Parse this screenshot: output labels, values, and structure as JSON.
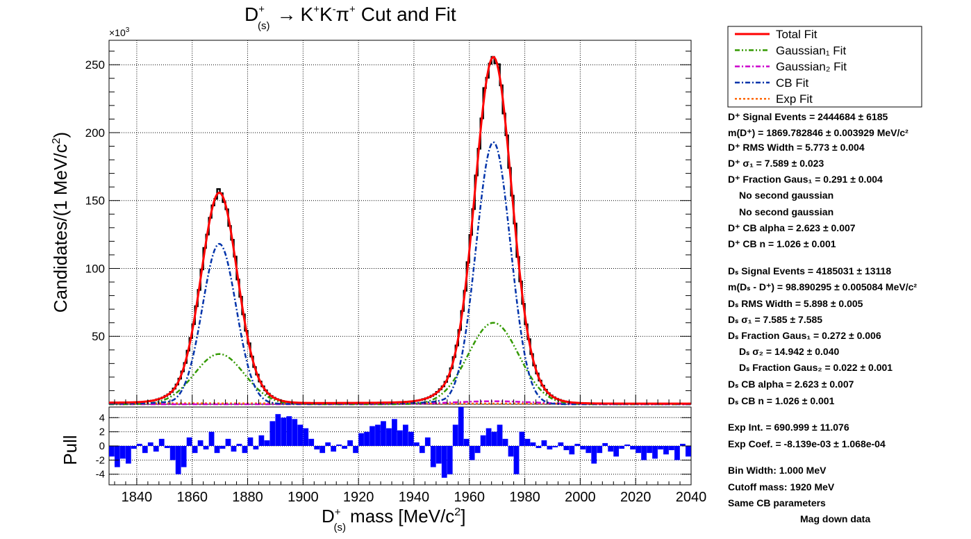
{
  "chart_data": {
    "type": "line",
    "title": "D⁺(s) → K⁺K⁻π⁺ Cut and Fit",
    "title_parts": {
      "a": "D",
      "a_sup": "+",
      "a_sub": "(s)",
      "arrow": "→",
      "b": "K",
      "b_sup": "+",
      "c": "K",
      "c_sup": "-",
      "d": "π",
      "d_sup": "+",
      "rest": "Cut and Fit"
    },
    "xlabel": "D⁺(s) mass [MeV/c²]",
    "xlabel_parts": {
      "a": "D",
      "sup": "+",
      "sub": "(s)",
      "rest": "mass [MeV/c",
      "exp": "2",
      "close": "]"
    },
    "ylabel": "Candidates/(1 MeV/c²)",
    "ylabel_parts": {
      "main": "Candidates/(1 MeV/c",
      "exp": "2",
      "close": ")"
    },
    "y_multiplier": "×10³",
    "y_multiplier_parts": {
      "base": "×10",
      "exp": "3"
    },
    "xlim": [
      1830,
      2040
    ],
    "ylim": [
      0,
      268
    ],
    "xticks": [
      1840,
      1860,
      1880,
      1900,
      1920,
      1940,
      1960,
      1980,
      2000,
      2020,
      2040
    ],
    "yticks": [
      50,
      100,
      150,
      200,
      250
    ],
    "grid": true,
    "legend_position": "top-right",
    "series": [
      {
        "name": "Total Fit",
        "color": "#ff0000",
        "style": "solid"
      },
      {
        "name": "Gaussian₁ Fit",
        "color": "#339900",
        "style": "dash-dot-dot"
      },
      {
        "name": "Gaussian₂ Fit",
        "color": "#cc00cc",
        "style": "dash-dot"
      },
      {
        "name": "CB Fit",
        "color": "#0033aa",
        "style": "dash-dot"
      },
      {
        "name": "Exp Fit",
        "color": "#ff6600",
        "style": "dotted"
      }
    ],
    "peaks": [
      {
        "mass": 1869.78,
        "height": 157,
        "gauss1_height": 37,
        "cb_height": 118,
        "width": 5.8
      },
      {
        "mass": 1968.67,
        "height": 253,
        "gauss1_height": 60,
        "cb_height": 193,
        "width": 5.9
      }
    ],
    "pull": {
      "ylabel": "Pull",
      "ylim": [
        -5.5,
        5.5
      ],
      "yticks": [
        -4,
        -2,
        0,
        2,
        4
      ],
      "color": "#0000ff",
      "x": [
        1831,
        1833,
        1835,
        1837,
        1839,
        1841,
        1843,
        1845,
        1847,
        1849,
        1851,
        1853,
        1855,
        1857,
        1859,
        1861,
        1863,
        1865,
        1867,
        1869,
        1871,
        1873,
        1875,
        1877,
        1879,
        1881,
        1883,
        1885,
        1887,
        1889,
        1891,
        1893,
        1895,
        1897,
        1899,
        1901,
        1903,
        1905,
        1907,
        1909,
        1911,
        1913,
        1915,
        1917,
        1919,
        1921,
        1923,
        1925,
        1927,
        1929,
        1931,
        1933,
        1935,
        1937,
        1939,
        1941,
        1943,
        1945,
        1947,
        1949,
        1951,
        1953,
        1955,
        1957,
        1959,
        1961,
        1963,
        1965,
        1967,
        1969,
        1971,
        1973,
        1975,
        1977,
        1979,
        1981,
        1983,
        1985,
        1987,
        1989,
        1991,
        1993,
        1995,
        1997,
        1999,
        2001,
        2003,
        2005,
        2007,
        2009,
        2011,
        2013,
        2015,
        2017,
        2019,
        2021,
        2023,
        2025,
        2027,
        2029,
        2031,
        2033,
        2035,
        2037,
        2039
      ],
      "values": [
        -1.5,
        -3.0,
        -1.8,
        -2.5,
        -0.4,
        0.3,
        -1.0,
        0.5,
        -0.8,
        1.0,
        -0.3,
        -2.0,
        -4.0,
        -3.0,
        1.2,
        -1.0,
        0.8,
        -0.5,
        2.0,
        -1.0,
        -0.4,
        1.0,
        -0.8,
        0.3,
        -1.0,
        1.2,
        -0.5,
        1.5,
        0.8,
        3.5,
        4.5,
        4.0,
        4.2,
        3.8,
        3.0,
        2.5,
        1.0,
        -0.5,
        -1.0,
        0.5,
        -0.8,
        0.2,
        -0.4,
        0.8,
        -1.0,
        1.8,
        2.0,
        2.8,
        3.0,
        3.5,
        2.5,
        3.8,
        2.2,
        3.0,
        2.0,
        0.5,
        -1.0,
        1.2,
        -3.0,
        -2.5,
        -4.5,
        -4.0,
        3.0,
        5.5,
        1.0,
        -2.0,
        -1.0,
        1.5,
        2.5,
        2.0,
        3.0,
        1.0,
        -1.5,
        -4.0,
        2.0,
        1.0,
        0.5,
        -0.3,
        0.8,
        -0.5,
        -0.2,
        0.5,
        -0.6,
        -1.2,
        0.3,
        -0.5,
        -1.0,
        -2.5,
        -1.0,
        0.4,
        -0.8,
        -1.5,
        -0.4,
        0.2,
        -0.5,
        -1.0,
        -2.0,
        -1.0,
        -1.8,
        -0.5,
        -1.2,
        -0.6,
        -2.0,
        0.3,
        -1.5
      ]
    }
  },
  "legend_entries": [
    {
      "label": "Total Fit",
      "color": "#ff0000",
      "dash": "",
      "width": 3
    },
    {
      "label": "Gaussian₁ Fit",
      "color": "#339900",
      "dash": "7 3 2 3 2 3",
      "width": 2.5
    },
    {
      "label": "Gaussian₂ Fit",
      "color": "#cc00cc",
      "dash": "7 3 2 3",
      "width": 2.5
    },
    {
      "label": "CB Fit",
      "color": "#0033aa",
      "dash": "7 3 2 3",
      "width": 2.5
    },
    {
      "label": "Exp Fit",
      "color": "#ff6600",
      "dash": "3 3",
      "width": 2.5
    }
  ],
  "parameters": {
    "dplus_signal": "D⁺ Signal Events = 2444684 ±  6185",
    "dplus_mass": "m(D⁺) = 1869.782846 ± 0.003929 MeV/c²",
    "dplus_rms": "D⁺ RMS Width = 5.773 ± 0.004",
    "dplus_sigma1": "D⁺  σ₁ = 7.589 ± 0.023",
    "dplus_frac1": "D⁺ Fraction Gaus₁ = 0.291 ± 0.004",
    "no_second_1": "No second gaussian",
    "no_second_2": "No second gaussian",
    "dplus_cb_alpha": "D⁺ CB alpha = 2.623 ± 0.007",
    "dplus_cb_n": "D⁺ CB n = 1.026 ± 0.001",
    "ds_signal": "Dₛ Signal Events = 4185031 ± 13118",
    "ds_mass_diff": "m(Dₛ - D⁺) = 98.890295 ± 0.005084 MeV/c²",
    "ds_rms": "Dₛ RMS Width = 5.898 ± 0.005",
    "ds_sigma1": "Dₛ  σ₁ = 7.585 ± 7.585",
    "ds_frac1": "Dₛ Fraction Gaus₁ = 0.272 ± 0.006",
    "ds_sigma2": "Dₛ  σ₂ = 14.942 ± 0.040",
    "ds_frac2": "Dₛ Fraction Gaus₂ = 0.022 ± 0.001",
    "ds_cb_alpha": "Dₛ CB alpha = 2.623 ± 0.007",
    "ds_cb_n": "Dₛ CB n = 1.026 ± 0.001",
    "exp_int": "Exp Int. = 690.999 ± 11.076",
    "exp_coef": "Exp Coef. = -8.139e-03 ± 1.068e-04",
    "bin_width": "Bin Width: 1.000 MeV",
    "cutoff": "Cutoff mass:  1920 MeV",
    "same_cb": "Same CB parameters",
    "mag": "Mag down data"
  }
}
